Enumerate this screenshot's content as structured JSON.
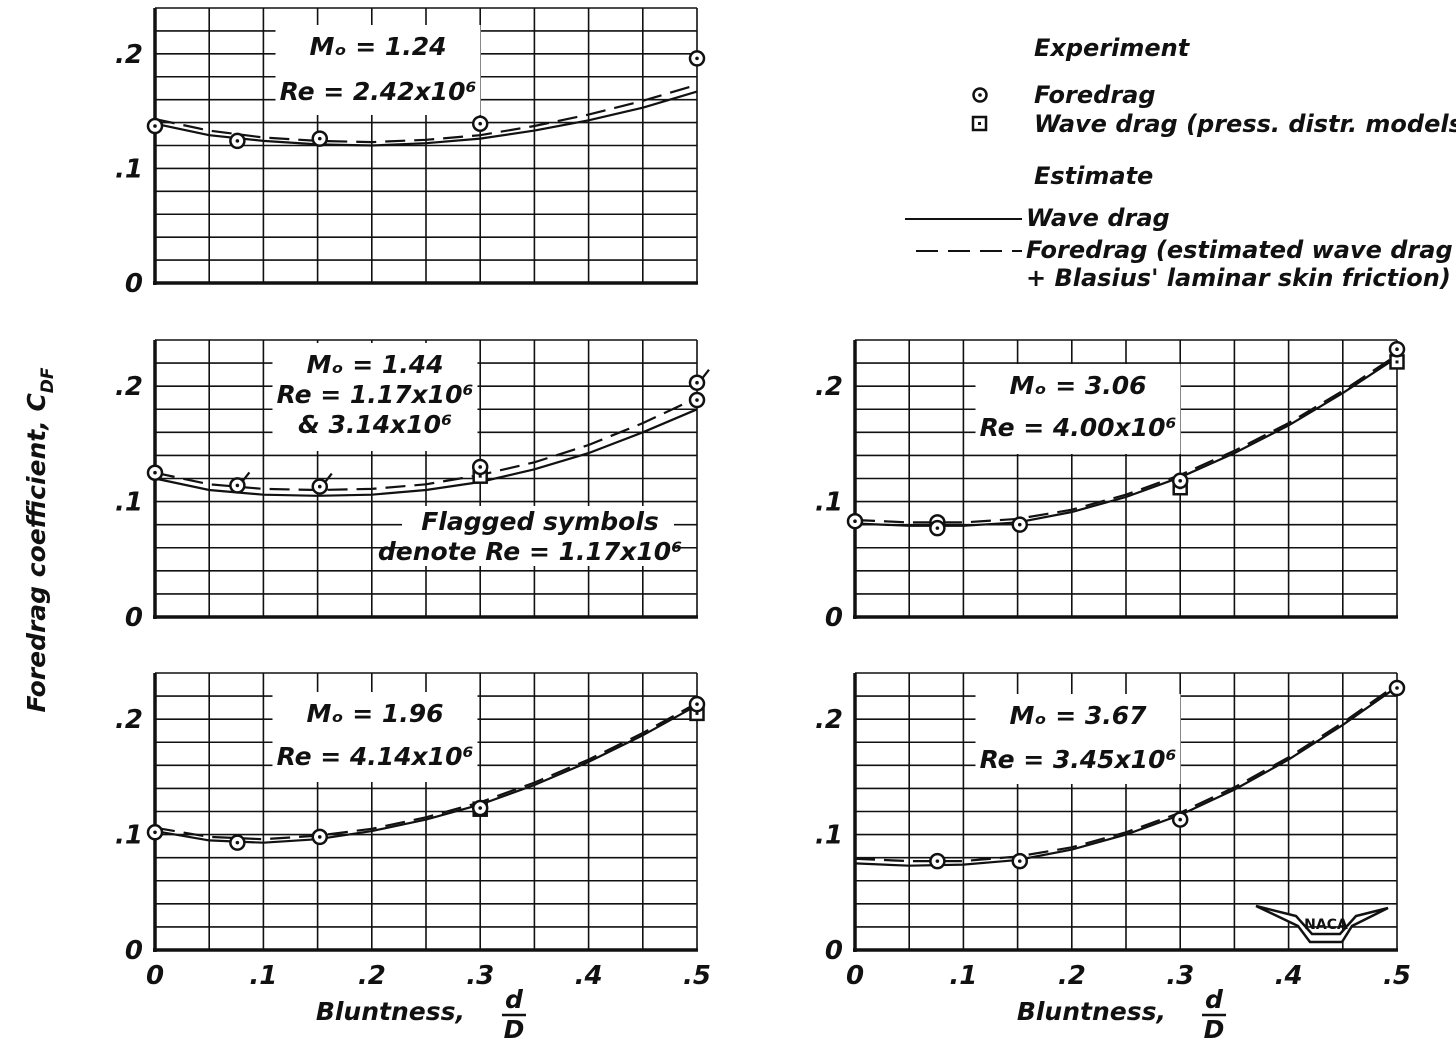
{
  "figure": {
    "ylabel": "Foredrag coefficient, C",
    "ylabel_sub": "DF",
    "xlabel": "Bluntness,",
    "xlabel_num": "d",
    "xlabel_den": "D",
    "logo_text": "NACA"
  },
  "legend": {
    "experiment_title": "Experiment",
    "foredrag": "Foredrag",
    "wave_drag_exp": "Wave drag (press. distr. models)",
    "estimate_title": "Estimate",
    "wave_drag_est": "Wave drag",
    "foredrag_est_line1": "Foredrag (estimated wave drag",
    "foredrag_est_line2": "+ Blasius' laminar skin friction)"
  },
  "colors": {
    "ink": "#111111",
    "background": "#ffffff"
  },
  "chart_data": [
    {
      "type": "line",
      "id": "p124",
      "annotation": [
        "Mₒ = 1.24",
        "Re = 2.42x10⁶"
      ],
      "xlim": [
        0,
        0.5
      ],
      "ylim": [
        0,
        0.24
      ],
      "xticks": [
        "0",
        ".1",
        ".2",
        ".3",
        ".4",
        ".5"
      ],
      "yticks": [
        [
          "0",
          0
        ],
        [
          ".1",
          0.1
        ],
        [
          ".2",
          0.2
        ]
      ],
      "show_xticks": false,
      "wave_drag": {
        "x": [
          0,
          0.05,
          0.1,
          0.15,
          0.2,
          0.25,
          0.3,
          0.35,
          0.4,
          0.45,
          0.5
        ],
        "y": [
          0.139,
          0.129,
          0.124,
          0.121,
          0.12,
          0.122,
          0.126,
          0.133,
          0.142,
          0.153,
          0.167
        ]
      },
      "foredrag": {
        "x": [
          0,
          0.05,
          0.1,
          0.15,
          0.2,
          0.25,
          0.3,
          0.35,
          0.4,
          0.45,
          0.5
        ],
        "y": [
          0.143,
          0.133,
          0.127,
          0.124,
          0.123,
          0.125,
          0.129,
          0.137,
          0.147,
          0.159,
          0.173
        ]
      },
      "exp_foredrag": {
        "x": [
          0,
          0.076,
          0.152,
          0.3,
          0.5
        ],
        "y": [
          0.137,
          0.124,
          0.126,
          0.139,
          0.196
        ]
      },
      "exp_wave": {
        "x": [],
        "y": []
      },
      "flagged": []
    },
    {
      "type": "line",
      "id": "p144",
      "annotation": [
        "Mₒ = 1.44",
        "Re = 1.17x10⁶",
        "& 3.14x10⁶"
      ],
      "note": [
        "Flagged symbols",
        "denote Re = 1.17x10⁶"
      ],
      "xlim": [
        0,
        0.5
      ],
      "ylim": [
        0,
        0.24
      ],
      "xticks": [
        "0",
        ".1",
        ".2",
        ".3",
        ".4",
        ".5"
      ],
      "yticks": [
        [
          "0",
          0
        ],
        [
          ".1",
          0.1
        ],
        [
          ".2",
          0.2
        ]
      ],
      "show_xticks": false,
      "wave_drag": {
        "x": [
          0,
          0.05,
          0.1,
          0.15,
          0.2,
          0.25,
          0.3,
          0.35,
          0.4,
          0.45,
          0.5
        ],
        "y": [
          0.12,
          0.11,
          0.106,
          0.105,
          0.106,
          0.11,
          0.117,
          0.128,
          0.142,
          0.16,
          0.18
        ]
      },
      "foredrag": {
        "x": [
          0,
          0.05,
          0.1,
          0.15,
          0.2,
          0.25,
          0.3,
          0.35,
          0.4,
          0.45,
          0.5
        ],
        "y": [
          0.125,
          0.115,
          0.111,
          0.11,
          0.111,
          0.115,
          0.123,
          0.134,
          0.149,
          0.168,
          0.19
        ]
      },
      "exp_foredrag": {
        "x": [
          0,
          0.076,
          0.152,
          0.3,
          0.5,
          0.5
        ],
        "y": [
          0.125,
          0.114,
          0.113,
          0.13,
          0.203,
          0.188
        ]
      },
      "exp_wave": {
        "x": [
          0.3
        ],
        "y": [
          0.122
        ]
      },
      "flagged": [
        1,
        2,
        4
      ]
    },
    {
      "type": "line",
      "id": "p196",
      "annotation": [
        "Mₒ = 1.96",
        "Re = 4.14x10⁶"
      ],
      "xlim": [
        0,
        0.5
      ],
      "ylim": [
        0,
        0.24
      ],
      "xticks": [
        "0",
        ".1",
        ".2",
        ".3",
        ".4",
        ".5"
      ],
      "yticks": [
        [
          "0",
          0
        ],
        [
          ".1",
          0.1
        ],
        [
          ".2",
          0.2
        ]
      ],
      "show_xticks": true,
      "wave_drag": {
        "x": [
          0,
          0.05,
          0.1,
          0.15,
          0.2,
          0.25,
          0.3,
          0.35,
          0.4,
          0.45,
          0.5
        ],
        "y": [
          0.103,
          0.095,
          0.093,
          0.096,
          0.103,
          0.113,
          0.126,
          0.143,
          0.163,
          0.186,
          0.212
        ]
      },
      "foredrag": {
        "x": [
          0,
          0.05,
          0.1,
          0.15,
          0.2,
          0.25,
          0.3,
          0.35,
          0.4,
          0.45,
          0.5
        ],
        "y": [
          0.106,
          0.098,
          0.096,
          0.099,
          0.105,
          0.115,
          0.128,
          0.145,
          0.165,
          0.188,
          0.214
        ]
      },
      "exp_foredrag": {
        "x": [
          0,
          0.076,
          0.152,
          0.3,
          0.5
        ],
        "y": [
          0.102,
          0.093,
          0.098,
          0.123,
          0.213
        ]
      },
      "exp_wave": {
        "x": [
          0.3,
          0.5
        ],
        "y": [
          0.122,
          0.205
        ]
      },
      "flagged": []
    },
    {
      "type": "line",
      "id": "p306",
      "annotation": [
        "Mₒ = 3.06",
        "Re = 4.00x10⁶"
      ],
      "xlim": [
        0,
        0.5
      ],
      "ylim": [
        0,
        0.24
      ],
      "xticks": [
        "0",
        ".1",
        ".2",
        ".3",
        ".4",
        ".5"
      ],
      "yticks": [
        [
          "0",
          0
        ],
        [
          ".1",
          0.1
        ],
        [
          ".2",
          0.2
        ]
      ],
      "show_xticks": false,
      "wave_drag": {
        "x": [
          0,
          0.05,
          0.1,
          0.15,
          0.2,
          0.25,
          0.3,
          0.35,
          0.4,
          0.45,
          0.5
        ],
        "y": [
          0.081,
          0.079,
          0.079,
          0.082,
          0.091,
          0.104,
          0.121,
          0.142,
          0.166,
          0.194,
          0.225
        ]
      },
      "foredrag": {
        "x": [
          0,
          0.05,
          0.1,
          0.15,
          0.2,
          0.25,
          0.3,
          0.35,
          0.4,
          0.45,
          0.5
        ],
        "y": [
          0.084,
          0.082,
          0.082,
          0.085,
          0.093,
          0.106,
          0.123,
          0.144,
          0.168,
          0.196,
          0.227
        ]
      },
      "exp_foredrag": {
        "x": [
          0,
          0.076,
          0.076,
          0.152,
          0.3,
          0.5
        ],
        "y": [
          0.083,
          0.082,
          0.077,
          0.08,
          0.118,
          0.232
        ]
      },
      "exp_wave": {
        "x": [
          0.3,
          0.5
        ],
        "y": [
          0.112,
          0.221
        ]
      },
      "flagged": []
    },
    {
      "type": "line",
      "id": "p367",
      "annotation": [
        "Mₒ = 3.67",
        "Re = 3.45x10⁶"
      ],
      "xlim": [
        0,
        0.5
      ],
      "ylim": [
        0,
        0.24
      ],
      "xticks": [
        "0",
        ".1",
        ".2",
        ".3",
        ".4",
        ".5"
      ],
      "yticks": [
        [
          "0",
          0
        ],
        [
          ".1",
          0.1
        ],
        [
          ".2",
          0.2
        ]
      ],
      "show_xticks": true,
      "wave_drag": {
        "x": [
          0,
          0.05,
          0.1,
          0.15,
          0.2,
          0.25,
          0.3,
          0.35,
          0.4,
          0.45,
          0.5
        ],
        "y": [
          0.075,
          0.073,
          0.074,
          0.078,
          0.087,
          0.1,
          0.117,
          0.139,
          0.165,
          0.195,
          0.228
        ]
      },
      "foredrag": {
        "x": [
          0,
          0.05,
          0.1,
          0.15,
          0.2,
          0.25,
          0.3,
          0.35,
          0.4,
          0.45,
          0.5
        ],
        "y": [
          0.079,
          0.077,
          0.077,
          0.081,
          0.089,
          0.102,
          0.119,
          0.141,
          0.167,
          0.197,
          0.23
        ]
      },
      "exp_foredrag": {
        "x": [
          0.076,
          0.152,
          0.3,
          0.5
        ],
        "y": [
          0.077,
          0.077,
          0.113,
          0.227
        ]
      },
      "exp_wave": {
        "x": [],
        "y": []
      },
      "flagged": []
    }
  ]
}
